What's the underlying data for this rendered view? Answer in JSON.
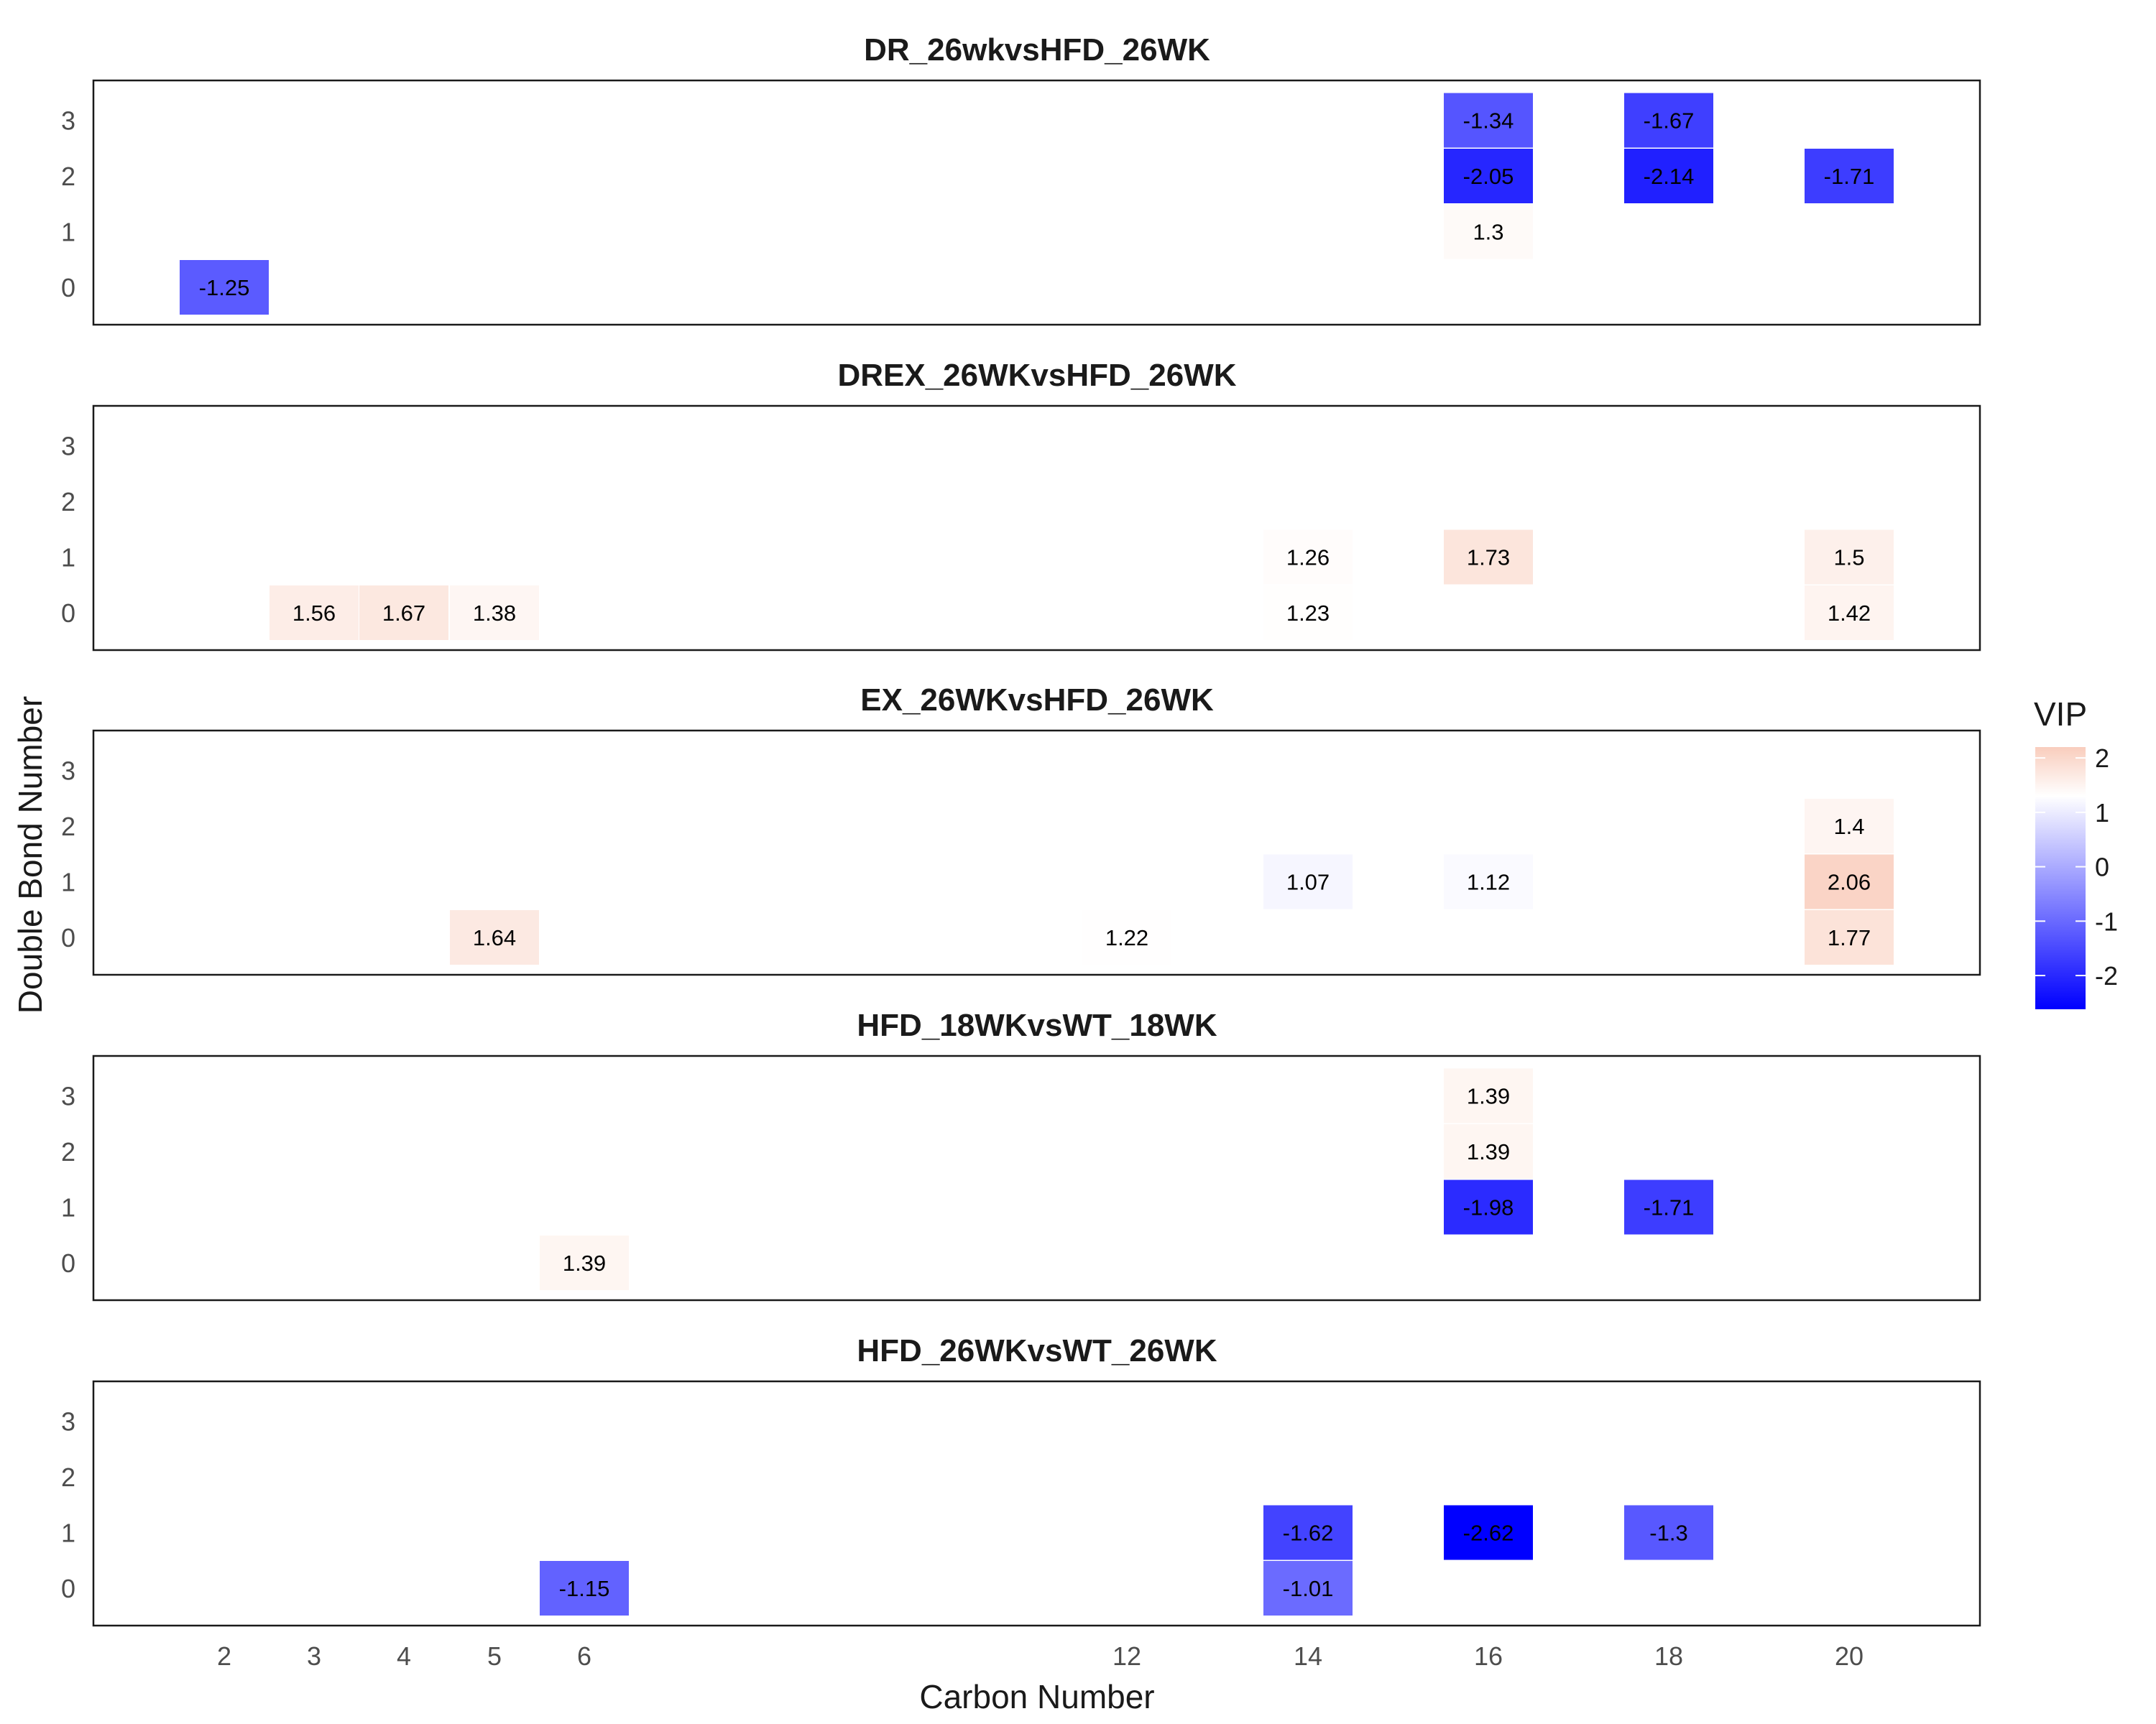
{
  "chart_data": {
    "type": "heatmap",
    "xlabel": "Carbon Number",
    "ylabel": "Double Bond Number",
    "x_ticks": [
      2,
      3,
      4,
      5,
      6,
      12,
      14,
      16,
      18,
      20
    ],
    "y_ticks": [
      0,
      1,
      2,
      3
    ],
    "legend": {
      "title": "VIP",
      "ticks": [
        2,
        1,
        0,
        -1,
        -2
      ],
      "range": [
        -2.62,
        2.2
      ],
      "colors": {
        "low": "#0000ff",
        "mid": "#ffffff",
        "high": "#f9cdbd"
      },
      "midpoint": 1.2
    },
    "panels": [
      {
        "title": "DR_26wkvsHFD_26WK",
        "cells": [
          {
            "x": 16,
            "y": 3,
            "value": -1.34
          },
          {
            "x": 18,
            "y": 3,
            "value": -1.67
          },
          {
            "x": 16,
            "y": 2,
            "value": -2.05
          },
          {
            "x": 18,
            "y": 2,
            "value": -2.14
          },
          {
            "x": 20,
            "y": 2,
            "value": -1.71
          },
          {
            "x": 16,
            "y": 1,
            "value": 1.3
          },
          {
            "x": 2,
            "y": 0,
            "value": -1.25
          }
        ]
      },
      {
        "title": "DREX_26WKvsHFD_26WK",
        "cells": [
          {
            "x": 14,
            "y": 1,
            "value": 1.26
          },
          {
            "x": 16,
            "y": 1,
            "value": 1.73
          },
          {
            "x": 20,
            "y": 1,
            "value": 1.5
          },
          {
            "x": 3,
            "y": 0,
            "value": 1.56
          },
          {
            "x": 4,
            "y": 0,
            "value": 1.67
          },
          {
            "x": 5,
            "y": 0,
            "value": 1.38
          },
          {
            "x": 14,
            "y": 0,
            "value": 1.23
          },
          {
            "x": 20,
            "y": 0,
            "value": 1.42
          }
        ]
      },
      {
        "title": "EX_26WKvsHFD_26WK",
        "cells": [
          {
            "x": 20,
            "y": 2,
            "value": 1.4
          },
          {
            "x": 14,
            "y": 1,
            "value": 1.07
          },
          {
            "x": 16,
            "y": 1,
            "value": 1.12
          },
          {
            "x": 20,
            "y": 1,
            "value": 2.06
          },
          {
            "x": 5,
            "y": 0,
            "value": 1.64
          },
          {
            "x": 12,
            "y": 0,
            "value": 1.22
          },
          {
            "x": 20,
            "y": 0,
            "value": 1.77
          }
        ]
      },
      {
        "title": "HFD_18WKvsWT_18WK",
        "cells": [
          {
            "x": 16,
            "y": 3,
            "value": 1.39
          },
          {
            "x": 16,
            "y": 2,
            "value": 1.39
          },
          {
            "x": 16,
            "y": 1,
            "value": -1.98
          },
          {
            "x": 18,
            "y": 1,
            "value": -1.71
          },
          {
            "x": 6,
            "y": 0,
            "value": 1.39
          }
        ]
      },
      {
        "title": "HFD_26WKvsWT_26WK",
        "cells": [
          {
            "x": 14,
            "y": 1,
            "value": -1.62
          },
          {
            "x": 16,
            "y": 1,
            "value": -2.62
          },
          {
            "x": 18,
            "y": 1,
            "value": -1.3
          },
          {
            "x": 6,
            "y": 0,
            "value": -1.15
          },
          {
            "x": 14,
            "y": 0,
            "value": -1.01
          }
        ]
      }
    ]
  }
}
